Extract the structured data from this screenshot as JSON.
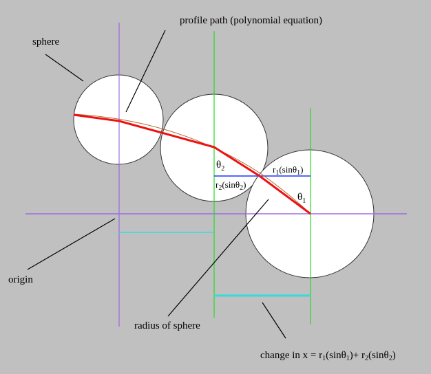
{
  "labels": {
    "sphere": "sphere",
    "profile_path": "profile path (polynomial equation)",
    "origin": "origin",
    "radius": "radius of sphere",
    "theta2": {
      "base": "θ",
      "sub": "2"
    },
    "theta1": {
      "base": "θ",
      "sub": "1"
    },
    "r1_sin": {
      "r": "r",
      "r_sub": "1",
      "mid": "(sinθ",
      "th_sub": "1",
      "end": ")"
    },
    "r2_sin": {
      "r": "r",
      "r_sub": "2",
      "mid": "(sinθ",
      "th_sub": "2",
      "end": ")"
    },
    "change_in_x": {
      "prefix": "change in x = r",
      "r1_sub": "1",
      "mid1": "(sinθ",
      "th1_sub": "1",
      "mid2": ")+ r",
      "r2_sub": "2",
      "mid3": "(sinθ",
      "th2_sub": "2",
      "end": ")"
    }
  },
  "colors": {
    "background": "#c0c0c0",
    "axis": "#a070e0",
    "vertical_guides": "#22dd22",
    "horizontal_r": "#2233ff",
    "delta_x": "#33dddd",
    "segment_path": "#ee1111",
    "profile_curve": "#b06a30"
  }
}
